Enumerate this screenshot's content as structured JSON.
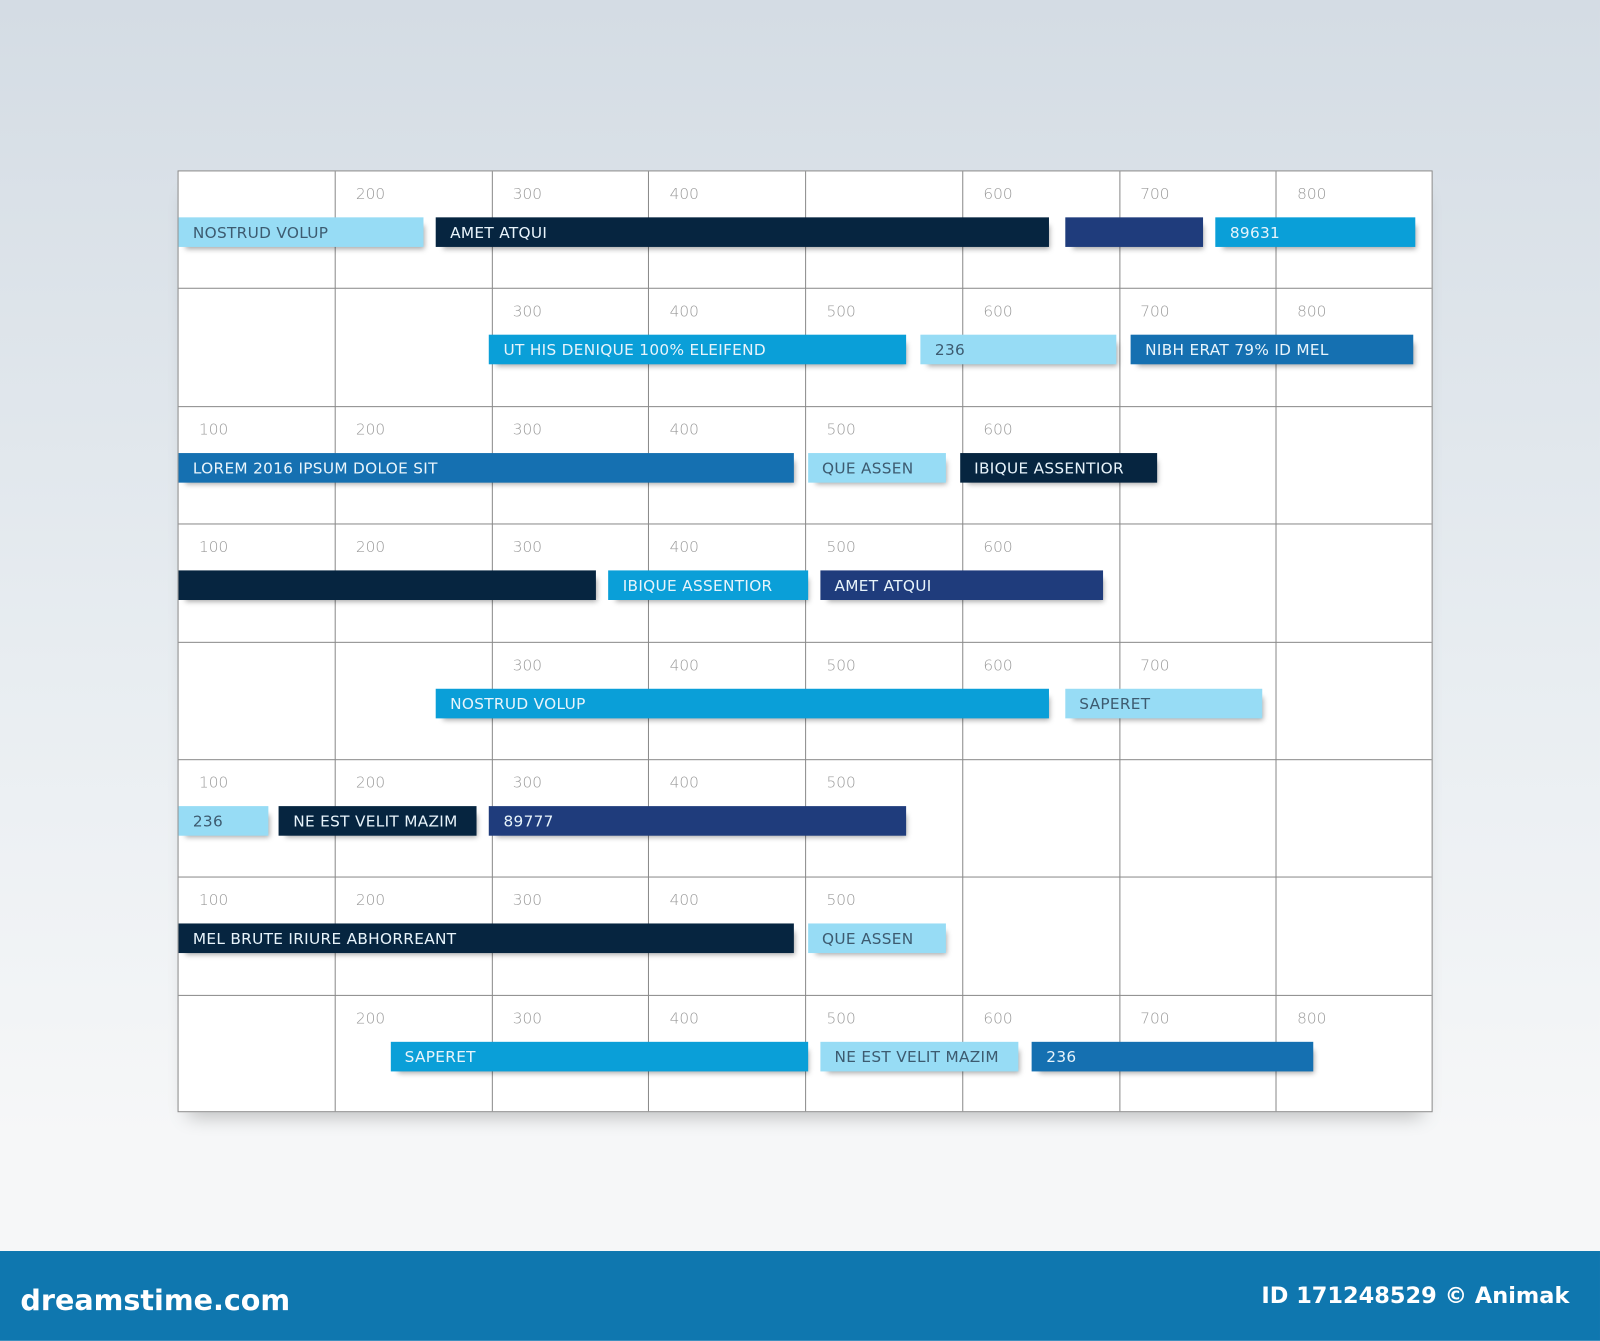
{
  "colors": {
    "light": "#97dcf5",
    "cyan": "#0a9fd8",
    "mid": "#1570b1",
    "navy": "#1f3c7c",
    "dark": "#062540"
  },
  "chart_data": {
    "type": "gantt",
    "grid": true,
    "xlim": [
      100,
      900
    ],
    "rows": [
      {
        "ticks": [
          null,
          "200",
          "300",
          "400",
          null,
          "600",
          "700",
          "800"
        ],
        "bars": [
          {
            "start": 100,
            "end": 256,
            "label": "NOSTRUD VOLUP",
            "color": "light"
          },
          {
            "start": 264,
            "end": 655,
            "label": "AMET ATQUI",
            "color": "dark"
          },
          {
            "start": 665,
            "end": 753,
            "label": "",
            "color": "navy"
          },
          {
            "start": 761,
            "end": 888,
            "label": "89631",
            "color": "cyan"
          }
        ]
      },
      {
        "ticks": [
          null,
          null,
          "300",
          "400",
          "500",
          "600",
          "700",
          "800"
        ],
        "bars": [
          {
            "start": 298,
            "end": 564,
            "label": "UT HIS DENIQUE 100% ELEIFEND",
            "color": "cyan"
          },
          {
            "start": 573,
            "end": 698,
            "label": "236",
            "color": "light"
          },
          {
            "start": 707,
            "end": 887,
            "label": "NIBH ERAT 79% ID MEL",
            "color": "mid"
          }
        ]
      },
      {
        "ticks": [
          "100",
          "200",
          "300",
          "400",
          "500",
          "600",
          null,
          null
        ],
        "bars": [
          {
            "start": 100,
            "end": 492,
            "label": "LOREM 2016 IPSUM DOLOE SIT",
            "color": "mid"
          },
          {
            "start": 501,
            "end": 589,
            "label": "QUE ASSEN",
            "color": "light"
          },
          {
            "start": 598,
            "end": 724,
            "label": "IBIQUE ASSENTIOR",
            "color": "dark"
          }
        ]
      },
      {
        "ticks": [
          "100",
          "200",
          "300",
          "400",
          "500",
          "600",
          null,
          null
        ],
        "bars": [
          {
            "start": 100,
            "end": 366,
            "label": "",
            "color": "dark"
          },
          {
            "start": 374,
            "end": 501,
            "label": "IBIQUE ASSENTIOR",
            "color": "cyan"
          },
          {
            "start": 509,
            "end": 689,
            "label": "AMET ATQUI",
            "color": "navy"
          }
        ]
      },
      {
        "ticks": [
          null,
          null,
          "300",
          "400",
          "500",
          "600",
          "700",
          null
        ],
        "bars": [
          {
            "start": 264,
            "end": 655,
            "label": "NOSTRUD VOLUP",
            "color": "cyan"
          },
          {
            "start": 665,
            "end": 791,
            "label": "SAPERET",
            "color": "light"
          }
        ]
      },
      {
        "ticks": [
          "100",
          "200",
          "300",
          "400",
          "500",
          null,
          null,
          null
        ],
        "bars": [
          {
            "start": 100,
            "end": 157,
            "label": "236",
            "color": "light"
          },
          {
            "start": 164,
            "end": 290,
            "label": "NE EST VELIT MAZIM",
            "color": "dark"
          },
          {
            "start": 298,
            "end": 564,
            "label": "89777",
            "color": "navy"
          }
        ]
      },
      {
        "ticks": [
          "100",
          "200",
          "300",
          "400",
          "500",
          null,
          null,
          null
        ],
        "bars": [
          {
            "start": 100,
            "end": 492,
            "label": "MEL BRUTE IRIURE ABHORREANT",
            "color": "dark"
          },
          {
            "start": 501,
            "end": 589,
            "label": "QUE ASSEN",
            "color": "light"
          }
        ]
      },
      {
        "ticks": [
          null,
          "200",
          "300",
          "400",
          "500",
          "600",
          "700",
          "800"
        ],
        "bars": [
          {
            "start": 235,
            "end": 501,
            "label": "SAPERET",
            "color": "cyan"
          },
          {
            "start": 509,
            "end": 635,
            "label": "NE EST VELIT MAZIM",
            "color": "light"
          },
          {
            "start": 644,
            "end": 823,
            "label": "236",
            "color": "mid"
          }
        ]
      }
    ]
  },
  "footer": {
    "logo": "dreamstime.com",
    "credit": "ID 171248529 © Animak"
  }
}
